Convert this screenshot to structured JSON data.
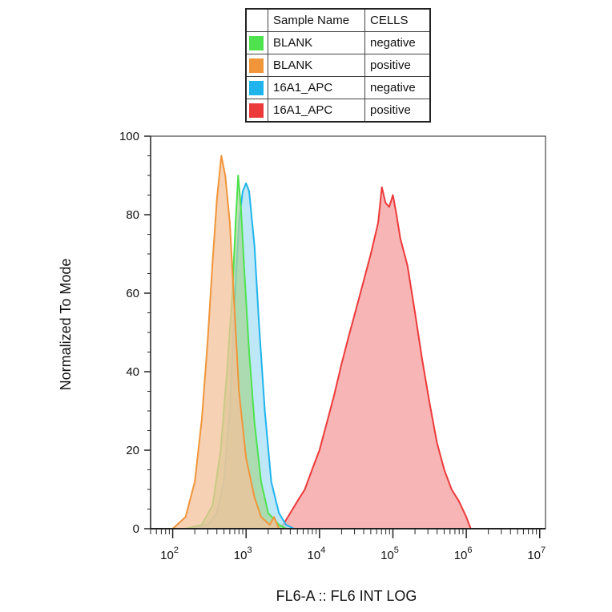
{
  "legend": {
    "headers": [
      "Sample Name",
      "CELLS"
    ],
    "rows": [
      {
        "sample": "BLANK",
        "cells": "negative",
        "color": "#4ee34e"
      },
      {
        "sample": "BLANK",
        "cells": "positive",
        "color": "#f0953a"
      },
      {
        "sample": "16A1_APC",
        "cells": "negative",
        "color": "#1fb4ec"
      },
      {
        "sample": "16A1_APC",
        "cells": "positive",
        "color": "#ec3a3a"
      }
    ]
  },
  "chart_data": {
    "type": "area",
    "title": "",
    "xlabel": "FL6-A :: FL6 INT LOG",
    "ylabel": "Normalized To Mode",
    "xscale": "log",
    "xlim": [
      50,
      12000000
    ],
    "ylim": [
      0,
      100
    ],
    "xticks": [
      {
        "base": "10",
        "exp": "2"
      },
      {
        "base": "10",
        "exp": "3"
      },
      {
        "base": "10",
        "exp": "4"
      },
      {
        "base": "10",
        "exp": "5"
      },
      {
        "base": "10",
        "exp": "6"
      },
      {
        "base": "10",
        "exp": "7"
      }
    ],
    "yticks": [
      "0",
      "20",
      "40",
      "60",
      "80",
      "100"
    ],
    "grid": false,
    "legend_position": "top",
    "series": [
      {
        "name": "16A1_APC positive",
        "color": "#ec3a3a",
        "fill": "#f59c9c",
        "points": [
          [
            2500,
            0
          ],
          [
            3200,
            1
          ],
          [
            4000,
            4
          ],
          [
            5000,
            7
          ],
          [
            6300,
            10
          ],
          [
            7900,
            15
          ],
          [
            10000,
            20
          ],
          [
            12600,
            27
          ],
          [
            15800,
            34
          ],
          [
            20000,
            42
          ],
          [
            25000,
            49
          ],
          [
            31600,
            56
          ],
          [
            39800,
            63
          ],
          [
            50000,
            70
          ],
          [
            63000,
            78
          ],
          [
            70800,
            87
          ],
          [
            79400,
            83
          ],
          [
            89100,
            82
          ],
          [
            100000,
            85
          ],
          [
            112000,
            80
          ],
          [
            126000,
            74
          ],
          [
            158000,
            67
          ],
          [
            200000,
            55
          ],
          [
            251000,
            43
          ],
          [
            316000,
            32
          ],
          [
            398000,
            22
          ],
          [
            501000,
            15
          ],
          [
            631000,
            10
          ],
          [
            794000,
            7
          ],
          [
            1000000,
            3
          ],
          [
            1150000,
            0
          ]
        ]
      },
      {
        "name": "16A1_APC negative",
        "color": "#1fb4ec",
        "fill": "#a8dff4",
        "points": [
          [
            200,
            0
          ],
          [
            300,
            1
          ],
          [
            400,
            4
          ],
          [
            500,
            12
          ],
          [
            600,
            30
          ],
          [
            700,
            58
          ],
          [
            800,
            78
          ],
          [
            900,
            86
          ],
          [
            1000,
            88
          ],
          [
            1100,
            86
          ],
          [
            1300,
            72
          ],
          [
            1500,
            52
          ],
          [
            1800,
            30
          ],
          [
            2200,
            12
          ],
          [
            2800,
            4
          ],
          [
            3500,
            1
          ],
          [
            4500,
            0
          ]
        ]
      },
      {
        "name": "BLANK negative",
        "color": "#4ee34e",
        "fill": "#a6d79a",
        "points": [
          [
            150,
            0
          ],
          [
            250,
            1
          ],
          [
            350,
            6
          ],
          [
            450,
            20
          ],
          [
            550,
            40
          ],
          [
            650,
            60
          ],
          [
            720,
            78
          ],
          [
            780,
            90
          ],
          [
            850,
            82
          ],
          [
            950,
            65
          ],
          [
            1100,
            45
          ],
          [
            1300,
            27
          ],
          [
            1600,
            12
          ],
          [
            2000,
            4
          ],
          [
            2800,
            1
          ],
          [
            3500,
            0
          ]
        ]
      },
      {
        "name": "BLANK positive",
        "color": "#f0953a",
        "fill": "#f4c19a",
        "points": [
          [
            100,
            0
          ],
          [
            150,
            3
          ],
          [
            200,
            12
          ],
          [
            250,
            28
          ],
          [
            300,
            48
          ],
          [
            350,
            68
          ],
          [
            400,
            84
          ],
          [
            460,
            95
          ],
          [
            520,
            90
          ],
          [
            600,
            78
          ],
          [
            700,
            55
          ],
          [
            800,
            35
          ],
          [
            1000,
            18
          ],
          [
            1300,
            8
          ],
          [
            1600,
            3
          ],
          [
            2100,
            1
          ],
          [
            2400,
            3
          ],
          [
            2800,
            0
          ]
        ]
      }
    ]
  }
}
